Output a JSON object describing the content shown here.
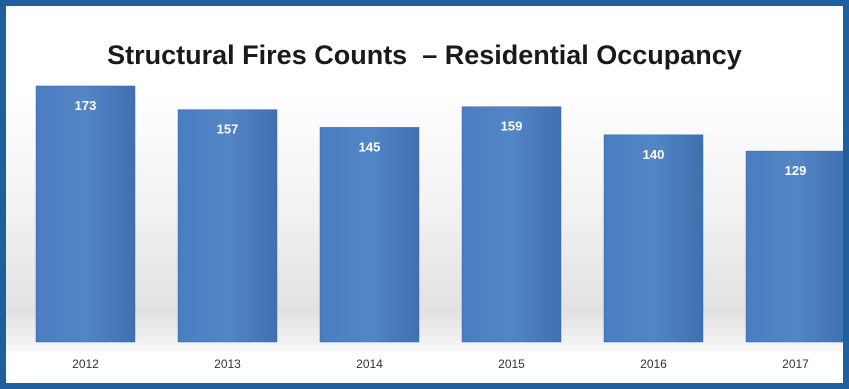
{
  "chart_data": {
    "type": "bar",
    "title": "Structural Fires Counts  – Residential Occupancy",
    "categories": [
      "2012",
      "2013",
      "2014",
      "2015",
      "2016",
      "2017"
    ],
    "values": [
      173,
      157,
      145,
      159,
      140,
      129
    ],
    "xlabel": "",
    "ylabel": "",
    "ylim": [
      0,
      200
    ],
    "grid": false,
    "legend": "none",
    "colors": {
      "bar": "#4f81bd",
      "bar_dark": "#3a6aa5",
      "bar_label": "#ffffff",
      "frame": "#1f5f9e",
      "tick": "#333333"
    }
  }
}
